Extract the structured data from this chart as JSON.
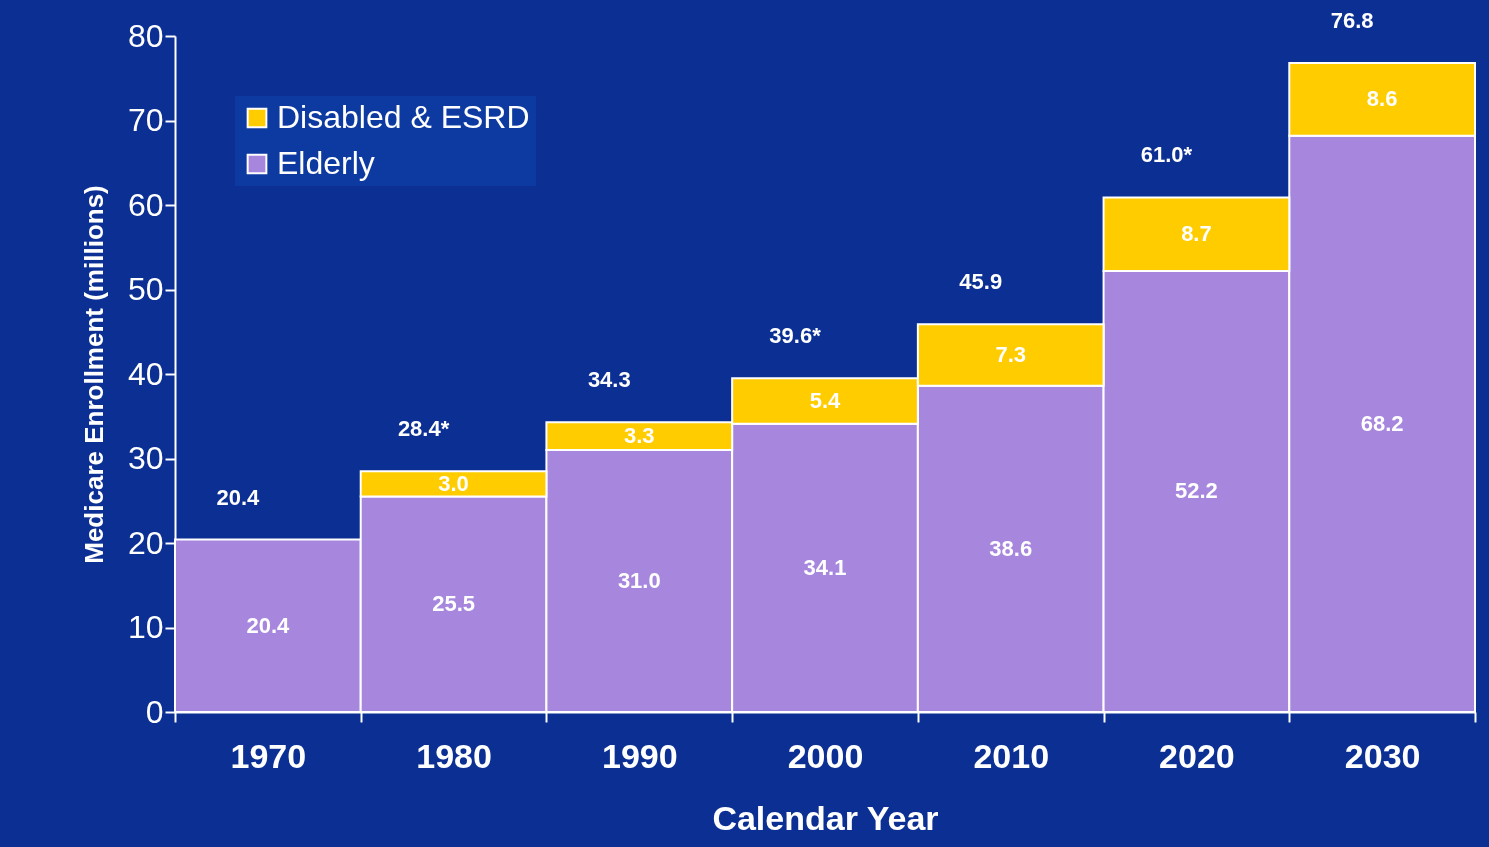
{
  "chart_data": {
    "type": "bar",
    "stacked": true,
    "xlabel": "Calendar Year",
    "ylabel": "Medicare Enrollment (millions)",
    "categories": [
      "1970",
      "1980",
      "1990",
      "2000",
      "2010",
      "2020",
      "2030"
    ],
    "series": [
      {
        "name": "Elderly",
        "color": "#a786dd",
        "values": [
          20.4,
          25.5,
          31.0,
          34.1,
          38.6,
          52.2,
          68.2
        ],
        "value_labels": [
          "20.4",
          "25.5",
          "31.0",
          "34.1",
          "38.6",
          "52.2",
          "68.2"
        ]
      },
      {
        "name": "Disabled & ESRD",
        "color": "#ffcc00",
        "values": [
          null,
          3.0,
          3.3,
          5.4,
          7.3,
          8.7,
          8.6
        ],
        "value_labels": [
          null,
          "3.0",
          "3.3",
          "5.4",
          "7.3",
          "8.7",
          "8.6"
        ]
      }
    ],
    "totals": [
      "20.4",
      "28.4*",
      "34.3",
      "39.6*",
      "45.9",
      "61.0*",
      "76.8"
    ],
    "ylim": [
      0,
      80
    ],
    "yticks": [
      0,
      10,
      20,
      30,
      40,
      50,
      60,
      70,
      80
    ],
    "grid": false,
    "legend": "top left"
  }
}
